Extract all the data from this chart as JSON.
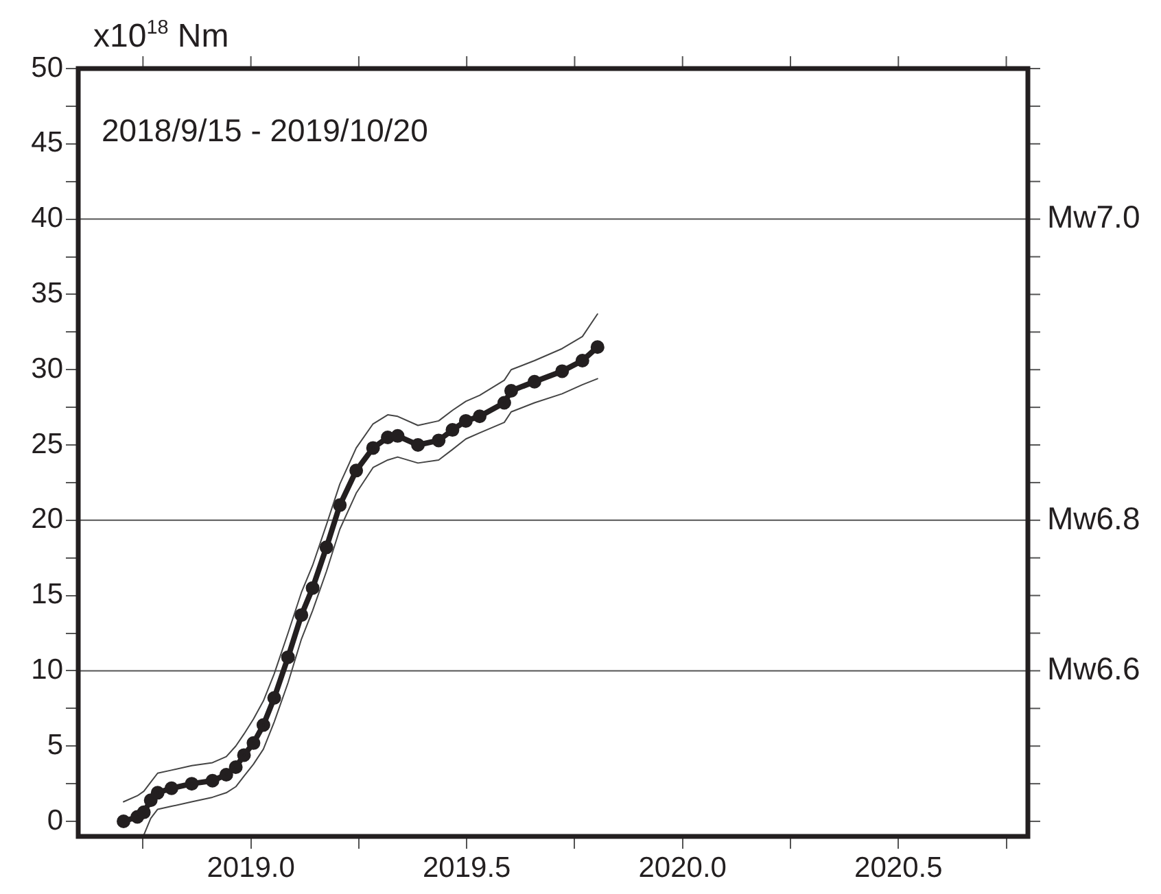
{
  "chart_data": {
    "type": "line",
    "ylabel": "x10$^{18}$ Nm",
    "annotations": [
      "2018/9/15 - 2019/10/20"
    ],
    "x": [
      2018.705,
      2018.737,
      2018.752,
      2018.768,
      2018.784,
      2018.816,
      2018.863,
      2018.911,
      2018.943,
      2018.965,
      2018.984,
      2019.006,
      2019.029,
      2019.054,
      2019.086,
      2019.117,
      2019.143,
      2019.175,
      2019.206,
      2019.244,
      2019.283,
      2019.317,
      2019.34,
      2019.387,
      2019.435,
      2019.467,
      2019.498,
      2019.53,
      2019.587,
      2019.603,
      2019.657,
      2019.721,
      2019.768,
      2019.803
    ],
    "series": [
      {
        "color": "#444444",
        "marker": "none",
        "values": [
          1.3,
          1.7,
          2.0,
          2.6,
          3.2,
          3.4,
          3.7,
          3.9,
          4.3,
          5.0,
          5.8,
          6.8,
          8.0,
          9.8,
          12.5,
          15.2,
          17.0,
          19.7,
          22.4,
          24.8,
          26.4,
          27.0,
          26.9,
          26.3,
          26.6,
          27.3,
          27.9,
          28.3,
          29.3,
          30.0,
          30.6,
          31.4,
          32.2,
          33.7
        ]
      },
      {
        "color": "#444444",
        "marker": "none",
        "values": [
          null,
          null,
          -0.9,
          0.2,
          0.8,
          1.0,
          1.3,
          1.6,
          1.9,
          2.3,
          3.0,
          3.8,
          4.8,
          6.6,
          9.2,
          12.1,
          14.0,
          16.6,
          19.4,
          21.8,
          23.5,
          24.0,
          24.2,
          23.8,
          24.0,
          24.7,
          25.4,
          25.8,
          26.5,
          27.2,
          27.8,
          28.4,
          29.0,
          29.4
        ]
      },
      {
        "color": "#231f20",
        "values": [
          0,
          0.3,
          0.6,
          1.4,
          1.9,
          2.2,
          2.5,
          2.7,
          3.1,
          3.6,
          4.4,
          5.2,
          6.4,
          8.2,
          10.9,
          13.7,
          15.5,
          18.2,
          21,
          23.3,
          24.8,
          25.5,
          25.6,
          25.0,
          25.3,
          26.0,
          26.6,
          26.9,
          27.8,
          28.6,
          29.2,
          29.9,
          30.6,
          31.5
        ]
      }
    ],
    "marker": "circle",
    "line_style": "solid",
    "grid": false,
    "legend": false,
    "xlim": [
      2018.6,
      2020.8
    ],
    "xticks": [
      {
        "value": 2018.75,
        "label": null
      },
      {
        "value": 2019,
        "label": "2019.0"
      },
      {
        "value": 2019.25,
        "label": null
      },
      {
        "value": 2019.5,
        "label": "2019.5"
      },
      {
        "value": 2019.75,
        "label": null
      },
      {
        "value": 2020,
        "label": "2020.0"
      },
      {
        "value": 2020.25,
        "label": null
      },
      {
        "value": 2020.5,
        "label": "2020.5"
      },
      {
        "value": 2020.75,
        "label": null
      }
    ],
    "ylim": [
      -1,
      50
    ],
    "yticks": [
      0,
      {
        "value": 2.5,
        "label": null
      },
      5,
      {
        "value": 7.5,
        "label": null
      },
      10,
      {
        "value": 12.5,
        "label": null
      },
      15,
      {
        "value": 17.5,
        "label": null
      },
      20,
      {
        "value": 22.5,
        "label": null
      },
      25,
      {
        "value": 27.5,
        "label": null
      },
      30,
      {
        "value": 32.5,
        "label": null
      },
      35,
      {
        "value": 37.5,
        "label": null
      },
      40,
      {
        "value": 42.5,
        "label": null
      },
      45,
      {
        "value": 47.5,
        "label": null
      },
      50
    ],
    "ref_lines": [
      {
        "axis": "y",
        "value": 40,
        "label": "Mw7.0",
        "color": "#555555"
      },
      {
        "axis": "y",
        "value": 20,
        "label": "Mw6.8",
        "color": "#555555"
      },
      {
        "axis": "y",
        "value": 10,
        "label": "Mw6.6",
        "color": "#555555"
      }
    ]
  }
}
